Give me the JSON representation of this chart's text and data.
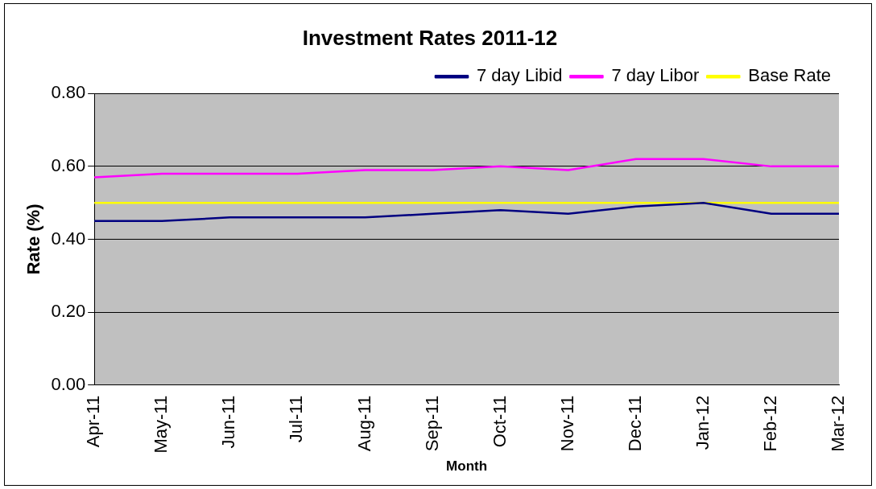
{
  "chart_data": {
    "type": "line",
    "title": "Investment Rates 2011-12",
    "xlabel": "Month",
    "ylabel": "Rate (%)",
    "categories": [
      "Apr-11",
      "May-11",
      "Jun-11",
      "Jul-11",
      "Aug-11",
      "Sep-11",
      "Oct-11",
      "Nov-11",
      "Dec-11",
      "Jan-12",
      "Feb-12",
      "Mar-12"
    ],
    "series": [
      {
        "name": "7 day Libid",
        "color": "#000080",
        "values": [
          0.45,
          0.45,
          0.46,
          0.46,
          0.46,
          0.47,
          0.48,
          0.47,
          0.49,
          0.5,
          0.47,
          0.47
        ]
      },
      {
        "name": "7 day Libor",
        "color": "#ff00ff",
        "values": [
          0.57,
          0.58,
          0.58,
          0.58,
          0.59,
          0.59,
          0.6,
          0.59,
          0.62,
          0.62,
          0.6,
          0.6
        ]
      },
      {
        "name": "Base Rate",
        "color": "#ffff00",
        "values": [
          0.5,
          0.5,
          0.5,
          0.5,
          0.5,
          0.5,
          0.5,
          0.5,
          0.5,
          0.5,
          0.5,
          0.5
        ]
      }
    ],
    "ylim": [
      0,
      0.8
    ],
    "yticks": [
      {
        "value": 0,
        "label": "0.00"
      },
      {
        "value": 0.2,
        "label": "0.20"
      },
      {
        "value": 0.4,
        "label": "0.40"
      },
      {
        "value": 0.6,
        "label": "0.60"
      },
      {
        "value": 0.8,
        "label": "0.80"
      }
    ],
    "grid": "y",
    "legend": "top right",
    "marker": "none",
    "line_style": "solid"
  }
}
